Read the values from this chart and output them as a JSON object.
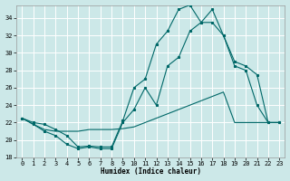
{
  "xlabel": "Humidex (Indice chaleur)",
  "bg_color": "#cce8e8",
  "grid_color": "#ffffff",
  "line_color": "#006868",
  "xlim": [
    -0.5,
    23.5
  ],
  "ylim": [
    18,
    35.5
  ],
  "yticks": [
    18,
    20,
    22,
    24,
    26,
    28,
    30,
    32,
    34
  ],
  "xticks": [
    0,
    1,
    2,
    3,
    4,
    5,
    6,
    7,
    8,
    9,
    10,
    11,
    12,
    13,
    14,
    15,
    16,
    17,
    18,
    19,
    20,
    21,
    22,
    23
  ],
  "series_upper_x": [
    0,
    1,
    2,
    3,
    4,
    5,
    6,
    7,
    8,
    9,
    10,
    11,
    12,
    13,
    14,
    15,
    16,
    17,
    18,
    19,
    20,
    21,
    22,
    23
  ],
  "series_upper_y": [
    22.5,
    22.0,
    21.8,
    21.2,
    20.5,
    19.2,
    19.3,
    19.2,
    19.2,
    22.2,
    26.0,
    27.0,
    31.0,
    32.5,
    35.0,
    35.5,
    33.5,
    35.0,
    32.0,
    29.0,
    28.5,
    27.5,
    22.0,
    22.0
  ],
  "series_mid_x": [
    0,
    1,
    2,
    3,
    4,
    5,
    6,
    7,
    8,
    9,
    10,
    11,
    12,
    13,
    14,
    15,
    16,
    17,
    18,
    19,
    20,
    21,
    22,
    23
  ],
  "series_mid_y": [
    22.5,
    21.8,
    21.0,
    20.5,
    19.5,
    19.0,
    19.2,
    19.0,
    19.0,
    22.0,
    23.5,
    26.0,
    24.0,
    28.5,
    29.5,
    32.5,
    33.5,
    33.5,
    32.0,
    28.5,
    28.0,
    24.0,
    22.0,
    22.0
  ],
  "series_low_x": [
    0,
    1,
    2,
    3,
    4,
    5,
    6,
    7,
    8,
    9,
    10,
    11,
    12,
    13,
    14,
    15,
    16,
    17,
    18,
    19,
    20,
    21,
    22,
    23
  ],
  "series_low_y": [
    22.5,
    21.8,
    21.2,
    21.0,
    21.0,
    21.0,
    21.2,
    21.2,
    21.2,
    21.3,
    21.5,
    22.0,
    22.5,
    23.0,
    23.5,
    24.0,
    24.5,
    25.0,
    25.5,
    22.0,
    22.0,
    22.0,
    22.0,
    22.0
  ]
}
